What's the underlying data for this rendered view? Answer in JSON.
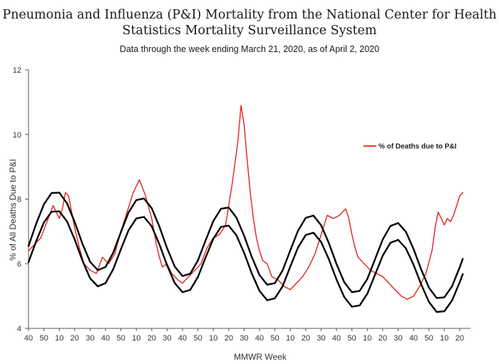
{
  "header": {
    "title_line1": "Pneumonia and Influenza (P&I) Mortality from the National Center for Health",
    "title_line2": "Statistics Mortality Surveillance System",
    "subtitle": "Data through the week ending March 21, 2020, as of April 2, 2020"
  },
  "chart_data": {
    "type": "line",
    "title": "Pneumonia and Influenza (P&I) Mortality from the National Center for Health Statistics Mortality Surveillance System",
    "subtitle": "Data through the week ending March 21, 2020, as of April 2, 2020",
    "xlabel": "MMWR Week",
    "ylabel": "% of All Deaths Due to P&I",
    "ylim": [
      4,
      12
    ],
    "yticks": [
      4,
      6,
      8,
      10,
      12
    ],
    "xlim": [
      0,
      287
    ],
    "x_tick_positions": [
      0,
      10,
      20,
      30,
      40,
      50,
      60,
      70,
      80,
      90,
      100,
      110,
      120,
      130,
      140,
      150,
      160,
      170,
      180,
      190,
      200,
      210,
      220,
      230,
      240,
      250,
      260,
      270,
      280
    ],
    "x_tick_labels": [
      "40",
      "50",
      "10",
      "20",
      "30",
      "40",
      "50",
      "10",
      "20",
      "30",
      "40",
      "50",
      "10",
      "20",
      "30",
      "40",
      "50",
      "10",
      "20",
      "30",
      "40",
      "50",
      "10",
      "20",
      "30",
      "40",
      "50",
      "10",
      "20"
    ],
    "x_tick_labels_visible": [
      "40",
      "50",
      "10",
      "20",
      "30",
      "40",
      "50",
      "10",
      "20",
      "30",
      "40",
      "50",
      "10",
      "20",
      "30",
      "40",
      "50",
      "10",
      "20",
      "30",
      "40",
      "50",
      "10",
      "20",
      "30",
      "40",
      "50",
      "10"
    ],
    "legend": {
      "placement": "top-right",
      "entries": [
        "% of Deaths due to P&I"
      ]
    },
    "grid": false,
    "series": [
      {
        "name": "% of Deaths due to P&I",
        "color": "#e0241b",
        "x": [
          0,
          4,
          8,
          12,
          16,
          20,
          22,
          24,
          26,
          28,
          30,
          33,
          36,
          40,
          44,
          48,
          52,
          56,
          60,
          64,
          68,
          72,
          76,
          80,
          83,
          85,
          87,
          90,
          93,
          97,
          100,
          104,
          108,
          112,
          116,
          120,
          124,
          128,
          132,
          136,
          138,
          140,
          142,
          144,
          146,
          148,
          150,
          152,
          155,
          158,
          162,
          166,
          170,
          174,
          178,
          182,
          186,
          190,
          194,
          198,
          202,
          206,
          208,
          210,
          212,
          214,
          218,
          222,
          226,
          230,
          234,
          238,
          242,
          246,
          250,
          254,
          258,
          262,
          264,
          266,
          268,
          270,
          272,
          274,
          276,
          278,
          280,
          282
        ],
        "y": [
          6.4,
          6.6,
          6.8,
          7.3,
          7.8,
          7.4,
          7.7,
          8.2,
          8.1,
          7.6,
          7.1,
          6.5,
          6.0,
          5.8,
          5.7,
          6.2,
          6.0,
          6.3,
          7.0,
          7.6,
          8.2,
          8.6,
          8.1,
          7.4,
          6.6,
          6.2,
          5.9,
          6.0,
          5.7,
          5.5,
          5.4,
          5.6,
          5.8,
          6.0,
          6.5,
          6.8,
          6.9,
          7.2,
          8.4,
          9.8,
          10.9,
          10.3,
          9.2,
          8.2,
          7.4,
          6.8,
          6.4,
          6.1,
          6.0,
          5.6,
          5.5,
          5.3,
          5.2,
          5.4,
          5.6,
          5.9,
          6.3,
          6.9,
          7.5,
          7.4,
          7.5,
          7.7,
          7.4,
          6.9,
          6.5,
          6.2,
          6.0,
          5.8,
          5.7,
          5.6,
          5.4,
          5.2,
          5.0,
          4.9,
          5.0,
          5.3,
          5.7,
          6.4,
          7.1,
          7.6,
          7.4,
          7.2,
          7.4,
          7.3,
          7.5,
          7.8,
          8.1,
          8.2
        ]
      },
      {
        "name": "",
        "color": "#000000",
        "x": [
          0,
          5,
          10,
          15,
          20,
          25,
          30,
          35,
          40,
          45,
          50,
          55,
          60,
          65,
          70,
          75,
          80,
          85,
          90,
          95,
          100,
          105,
          110,
          115,
          120,
          125,
          130,
          135,
          140,
          145,
          150,
          155,
          160,
          165,
          170,
          175,
          180,
          185,
          190,
          195,
          200,
          205,
          210,
          215,
          220,
          225,
          230,
          235,
          240,
          245,
          250,
          255,
          260,
          265,
          270,
          275,
          280,
          282
        ],
        "y": [
          6.55,
          7.24,
          7.84,
          8.19,
          8.2,
          7.87,
          7.29,
          6.62,
          6.06,
          5.8,
          5.9,
          6.34,
          6.98,
          7.59,
          7.97,
          8.02,
          7.72,
          7.15,
          6.48,
          5.91,
          5.62,
          5.69,
          6.1,
          6.72,
          7.32,
          7.7,
          7.74,
          7.43,
          6.87,
          6.21,
          5.65,
          5.35,
          5.4,
          5.79,
          6.41,
          7.02,
          7.42,
          7.49,
          7.19,
          6.64,
          5.99,
          5.43,
          5.12,
          5.16,
          5.53,
          6.14,
          6.75,
          7.17,
          7.26,
          6.99,
          6.46,
          5.82,
          5.26,
          4.94,
          4.96,
          5.3,
          5.89,
          6.15
        ]
      },
      {
        "name": "",
        "color": "#000000",
        "x": [
          0,
          5,
          10,
          15,
          20,
          25,
          30,
          35,
          40,
          45,
          50,
          55,
          60,
          65,
          70,
          75,
          80,
          85,
          90,
          95,
          100,
          105,
          110,
          115,
          120,
          125,
          130,
          135,
          140,
          145,
          150,
          155,
          160,
          165,
          170,
          175,
          180,
          185,
          190,
          195,
          200,
          205,
          210,
          215,
          220,
          225,
          230,
          235,
          240,
          245,
          250,
          255,
          260,
          265,
          270,
          275,
          280,
          282
        ],
        "y": [
          6.05,
          6.7,
          7.28,
          7.61,
          7.62,
          7.31,
          6.75,
          6.1,
          5.55,
          5.3,
          5.4,
          5.83,
          6.45,
          7.04,
          7.4,
          7.45,
          7.16,
          6.6,
          5.95,
          5.4,
          5.12,
          5.19,
          5.59,
          6.19,
          6.77,
          7.14,
          7.18,
          6.88,
          6.34,
          5.7,
          5.16,
          4.87,
          4.93,
          5.3,
          5.91,
          6.5,
          6.89,
          6.96,
          6.67,
          6.14,
          5.51,
          4.97,
          4.67,
          4.71,
          5.07,
          5.66,
          6.25,
          6.65,
          6.74,
          6.48,
          5.97,
          5.36,
          4.82,
          4.51,
          4.53,
          4.86,
          5.43,
          5.68
        ]
      }
    ]
  }
}
